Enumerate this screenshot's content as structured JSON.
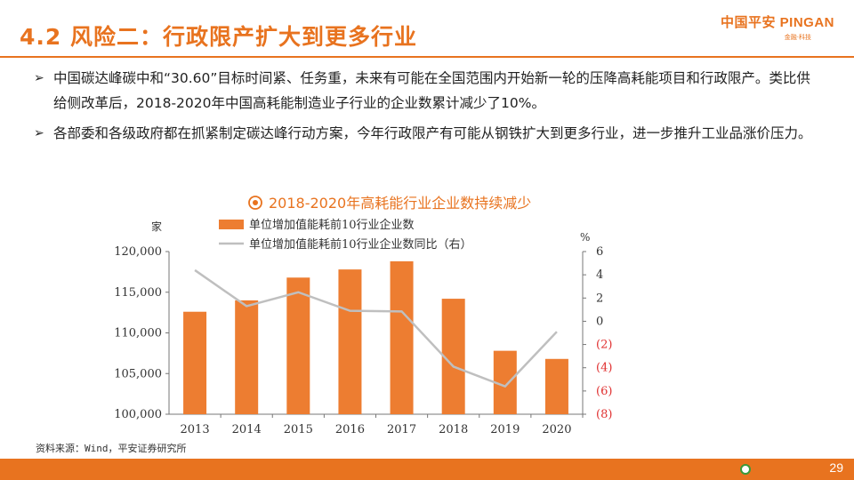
{
  "header": {
    "title": "4.2 风险二：行政限产扩大到更多行业",
    "logo_text": "中国平安 PINGAN",
    "logo_sub": "金融·科技"
  },
  "bullets": [
    "中国碳达峰碳中和“30.60”目标时间紧、任务重，未来有可能在全国范围内开始新一轮的压降高耗能项目和行政限产。类比供给侧改革后，2018-2020年中国高耗能制造业子行业的企业数累计减少了10%。",
    "各部委和各级政府都在抓紧制定碳达峰行动方案，今年行政限产有可能从钢铁扩大到更多行业，进一步推升工业品涨价压力。"
  ],
  "footer": {
    "source": "资料来源：Wind，平安证券研究所",
    "page": "29"
  },
  "colors": {
    "accent": "#e8731f",
    "bar": "#ed7d31",
    "line": "#bfbfbf",
    "negative_tick": "#e03030"
  },
  "chart_data": {
    "type": "bar",
    "title": "2018-2020年高耗能行业企业数持续减少",
    "title_icon": "target-icon",
    "y_unit_left": "家",
    "y_unit_right": "%",
    "categories": [
      "2013",
      "2014",
      "2015",
      "2016",
      "2017",
      "2018",
      "2019",
      "2020"
    ],
    "series": [
      {
        "name": "单位增加值能耗前10行业企业数",
        "type": "bar",
        "axis": "left",
        "values": [
          112600,
          114000,
          116800,
          117800,
          118800,
          114200,
          107800,
          106800
        ]
      },
      {
        "name": "单位增加值能耗前10行业企业数同比（右）",
        "type": "line",
        "axis": "right",
        "values": [
          4.4,
          1.3,
          2.5,
          0.9,
          0.85,
          -3.9,
          -5.6,
          -0.9
        ]
      }
    ],
    "ylim_left": [
      100000,
      120000
    ],
    "yticks_left": [
      "100,000",
      "105,000",
      "110,000",
      "115,000",
      "120,000"
    ],
    "ylim_right": [
      -8,
      6
    ],
    "yticks_right": [
      "(8)",
      "(6)",
      "(4)",
      "(2)",
      "0",
      "2",
      "4",
      "6"
    ],
    "legend_position": "top-left"
  }
}
